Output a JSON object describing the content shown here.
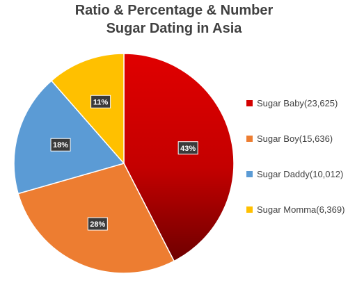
{
  "chart_data": {
    "type": "pie",
    "title": "Ratio & Percentage & Number Sugar Dating in Asia",
    "title_lines": [
      "Ratio & Percentage & Number",
      "Sugar Dating in Asia"
    ],
    "categories": [
      "Sugar Baby",
      "Sugar Boy",
      "Sugar Daddy",
      "Sugar Momma"
    ],
    "values": [
      23625,
      15636,
      10012,
      6369
    ],
    "percent_labels": [
      "43%",
      "28%",
      "18%",
      "11%"
    ],
    "legend_labels": [
      "Sugar Baby(23,625)",
      "Sugar Boy(15,636)",
      "Sugar Daddy(10,012)",
      "Sugar Momma(6,369)"
    ],
    "colors": [
      "#d40000",
      "#ed7d31",
      "#5b9bd5",
      "#ffc000"
    ],
    "legend_position": "right"
  }
}
